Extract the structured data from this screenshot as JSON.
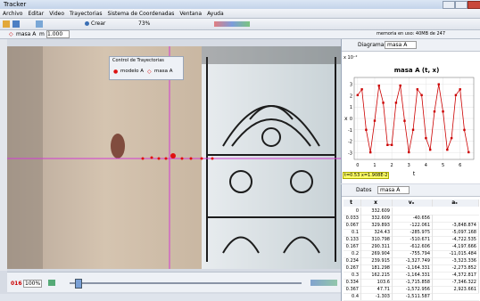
{
  "window": {
    "title": "Tracker"
  },
  "menu": [
    "Archivo",
    "Editar",
    "Video",
    "Trayectorias",
    "Sistema de Coordenadas",
    "Ventana",
    "Ayuda"
  ],
  "toolbar": {
    "create": "Crear",
    "zoom": "73%"
  },
  "track_bar": {
    "track": "masa A",
    "mass_label": "m",
    "mass": "1.000",
    "memory": "memoria en uso: 40MB de 247"
  },
  "traj_control": {
    "title": "Control de Trayectorias",
    "items": [
      "modelo A",
      "masa A"
    ]
  },
  "player": {
    "frame": "016",
    "zoom": "100%"
  },
  "plot_panel": {
    "tab": "Diagramas",
    "track": "masa A",
    "readout": "t=0.53  x=1.908E-2",
    "chart_data": {
      "type": "line",
      "title": "masa A (t, x)",
      "x_label": "t",
      "y_label": "x",
      "y_scale_label": "x 10⁻²",
      "x": [
        0,
        0.25,
        0.5,
        0.75,
        1.0,
        1.25,
        1.5,
        1.75,
        2.0,
        2.25,
        2.5,
        2.75,
        3.0,
        3.25,
        3.5,
        3.75,
        4.0,
        4.25,
        4.5,
        4.75,
        5.0,
        5.25,
        5.5,
        5.75,
        6.0,
        6.25,
        6.5
      ],
      "series": [
        {
          "name": "masa A",
          "color": "#cc0000",
          "values": [
            2.05,
            2.56,
            -1.0,
            -2.98,
            -0.2,
            2.88,
            1.38,
            -2.33,
            -2.33,
            1.38,
            2.89,
            -0.21,
            -2.97,
            -1.0,
            2.56,
            2.05,
            -1.73,
            -2.75,
            0.61,
            3.0,
            0.61,
            -2.75,
            -1.73,
            2.05,
            2.56,
            -1.01,
            -2.97
          ]
        }
      ],
      "xlim": [
        -0.2,
        6.8
      ],
      "ylim": [
        -3.6,
        3.6
      ],
      "xticks": [
        0,
        1,
        2,
        3,
        4,
        5,
        6
      ],
      "yticks": [
        -3,
        -2,
        -1,
        0,
        1,
        2,
        3
      ],
      "grid": true
    }
  },
  "table_panel": {
    "tab": "Datos",
    "track": "masa A",
    "columns": [
      "t",
      "x",
      "vₓ",
      "aₓ"
    ],
    "rows": [
      [
        "0",
        "332.609"
      ],
      [
        "0.033",
        "332.609",
        "-40.656"
      ],
      [
        "0.067",
        "329.893",
        "-122.061",
        "-3,848.874"
      ],
      [
        "0.1",
        "324.43",
        "-285.975",
        "-5,097.168"
      ],
      [
        "0.133",
        "310.798",
        "-510.671",
        "-4,722.535"
      ],
      [
        "0.167",
        "290.311",
        "-612.606",
        "-4,197.666"
      ],
      [
        "0.2",
        "269.904",
        "-755.794",
        "-11,015.484"
      ],
      [
        "0.234",
        "239.915",
        "-1,327.749",
        "-3,323.336"
      ],
      [
        "0.267",
        "181.298",
        "-1,164.331",
        "-2,273.852"
      ],
      [
        "0.3",
        "162.215",
        "-1,164.331",
        "-4,372.817"
      ],
      [
        "0.334",
        "103.6",
        "-1,715.858",
        "-7,346.322"
      ],
      [
        "0.367",
        "47.71",
        "-1,572.956",
        "2,923.661"
      ],
      [
        "0.4",
        "-1.303",
        "-1,511.587"
      ]
    ]
  }
}
